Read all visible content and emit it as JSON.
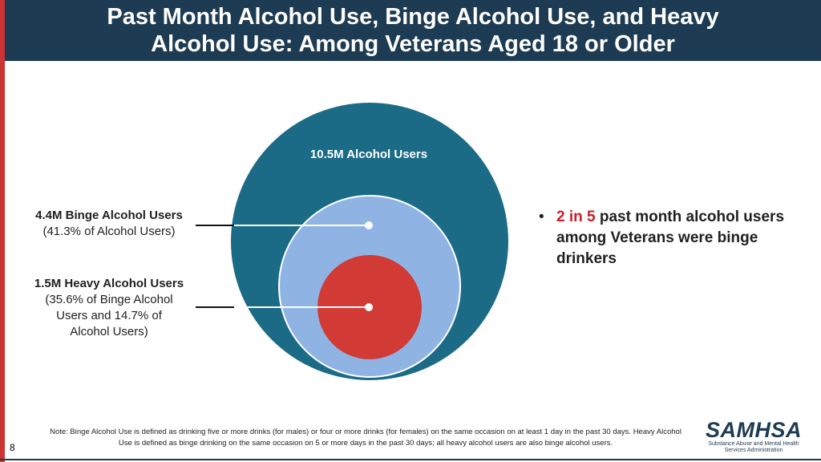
{
  "header": {
    "title_line1": "Past Month Alcohol Use, Binge Alcohol Use, and Heavy",
    "title_line2": "Alcohol Use: Among Veterans Aged 18 or Older"
  },
  "chart_data": {
    "type": "nested-circle",
    "title": "Past Month Alcohol Use, Binge Alcohol Use, and Heavy Alcohol Use: Among Veterans Aged 18 or Older",
    "groups": [
      {
        "name": "Alcohol Users",
        "value_millions": 10.5,
        "label": "10.5M Alcohol Users",
        "color": "#1b6b86"
      },
      {
        "name": "Binge Alcohol Users",
        "value_millions": 4.4,
        "pct_of_parent": 41.3,
        "label": "4.4M Binge Alcohol Users",
        "sublabel_lines": [
          "(41.3% of Alcohol Users)"
        ],
        "color": "#8fb4e3"
      },
      {
        "name": "Heavy Alcohol Users",
        "value_millions": 1.5,
        "pct_of_parent": 35.6,
        "pct_of_alcohol_users": 14.7,
        "label": "1.5M Heavy Alcohol Users",
        "sublabel_lines": [
          "(35.6% of Binge Alcohol",
          "Users and 14.7% of",
          "Alcohol Users)"
        ],
        "color": "#d23a36"
      }
    ]
  },
  "bullet": {
    "highlight": "2 in 5",
    "text": " past month alcohol users among Veterans were binge drinkers",
    "highlight_color": "#c8202a"
  },
  "note": "Note: Binge Alcohol Use is defined as drinking five or more drinks (for males) or four or more drinks (for females) on the same occasion on at least 1 day in the past 30 days. Heavy Alcohol Use is defined as binge drinking on the same occasion on 5 or more days in the past 30 days; all heavy alcohol users are also binge alcohol users.",
  "page_number": "8",
  "logo": {
    "name": "SAMHSA",
    "subtitle_line1": "Substance Abuse and Mental Health",
    "subtitle_line2": "Services Administration"
  }
}
